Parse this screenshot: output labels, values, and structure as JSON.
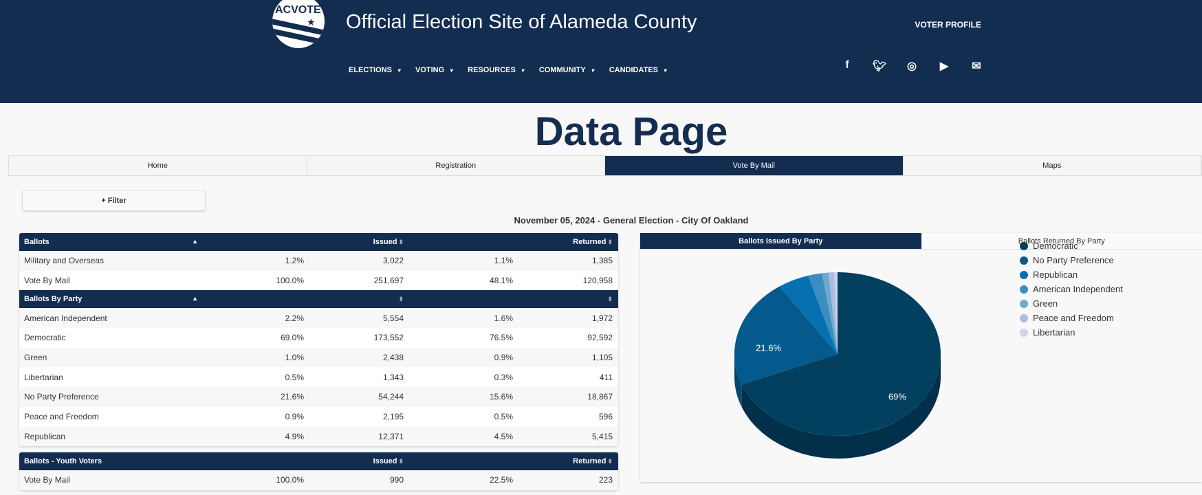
{
  "header": {
    "logo_text": "ACVOTE",
    "site_title": "Official Election Site of Alameda County",
    "voter_profile": "VOTER PROFILE",
    "nav": [
      "ELECTIONS",
      "VOTING",
      "RESOURCES",
      "COMMUNITY",
      "CANDIDATES"
    ],
    "caret": "▾",
    "social": [
      "facebook-icon",
      "twitter-icon",
      "instagram-icon",
      "youtube-icon",
      "mail-icon"
    ]
  },
  "page_title": "Data Page",
  "tabs": [
    "Home",
    "Registration",
    "Vote By Mail",
    "Maps"
  ],
  "filter_label": "+ Filter",
  "subtitle": "November 05, 2024 - General Election  -  City Of Oakland",
  "ballots": {
    "headers": [
      "Ballots",
      "",
      "Issued",
      "",
      "Returned"
    ],
    "rows": [
      [
        "Military and Overseas",
        "1.2%",
        "3,022",
        "1.1%",
        "1,385"
      ],
      [
        "Vote By Mail",
        "100.0%",
        "251,697",
        "48.1%",
        "120,958"
      ]
    ]
  },
  "by_party": {
    "headers": [
      "Ballots By Party",
      "",
      "",
      "",
      ""
    ],
    "rows": [
      [
        "American Independent",
        "2.2%",
        "5,554",
        "1.6%",
        "1,972"
      ],
      [
        "Democratic",
        "69.0%",
        "173,552",
        "76.5%",
        "92,592"
      ],
      [
        "Green",
        "1.0%",
        "2,438",
        "0.9%",
        "1,105"
      ],
      [
        "Libertarian",
        "0.5%",
        "1,343",
        "0.3%",
        "411"
      ],
      [
        "No Party Preference",
        "21.6%",
        "54,244",
        "15.6%",
        "18,867"
      ],
      [
        "Peace and Freedom",
        "0.9%",
        "2,195",
        "0.5%",
        "596"
      ],
      [
        "Republican",
        "4.9%",
        "12,371",
        "4.5%",
        "5,415"
      ]
    ]
  },
  "youth": {
    "headers": [
      "Ballots - Youth Voters",
      "",
      "Issued",
      "",
      "Returned"
    ],
    "rows": [
      [
        "Vote By Mail",
        "100.0%",
        "990",
        "22.5%",
        "223"
      ]
    ]
  },
  "chart_tabs": [
    "Ballots Issued By Party",
    "Ballots Returned By Party"
  ],
  "chart_data": {
    "type": "pie",
    "title": "Ballots Issued By Party",
    "legend": "right",
    "categories": [
      "Democratic",
      "No Party Preference",
      "Republican",
      "American Independent",
      "Green",
      "Peace and Freedom",
      "Libertarian"
    ],
    "values": [
      69.0,
      21.6,
      4.9,
      2.2,
      1.0,
      0.9,
      0.5
    ],
    "labels": [
      "69%",
      "21.6%",
      "",
      "",
      "",
      "",
      ""
    ],
    "colors": [
      "#03405f",
      "#045a8d",
      "#0770b0",
      "#3a8fc0",
      "#6fa8d0",
      "#a9bedf",
      "#d0d3ea"
    ],
    "side_colors": [
      "#022f49",
      "#03466f",
      "#055a8c",
      "#2c72a0",
      "#5888ab",
      "#8799b5",
      "#a7a9bf"
    ]
  }
}
